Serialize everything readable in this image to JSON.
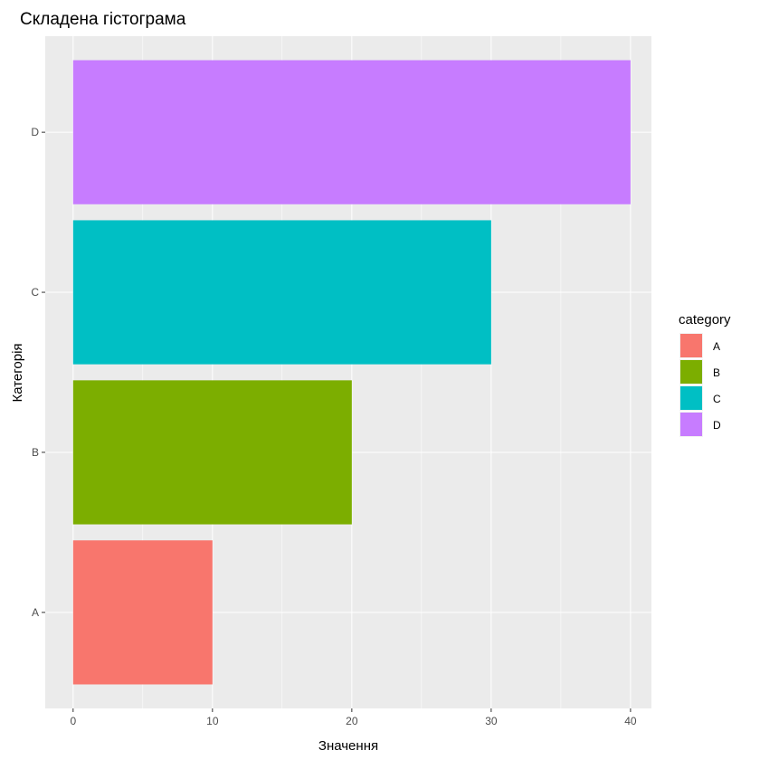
{
  "chart_data": {
    "type": "bar",
    "orientation": "horizontal",
    "title": "Складена гістограма",
    "xlabel": "Значення",
    "ylabel": "Категорія",
    "categories": [
      "A",
      "B",
      "C",
      "D"
    ],
    "values": [
      10,
      20,
      30,
      40
    ],
    "colors": [
      "#F8766D",
      "#7CAE00",
      "#00BFC4",
      "#C77CFF"
    ],
    "xlim": [
      -2,
      41.5
    ],
    "xticks": [
      0,
      10,
      20,
      30,
      40
    ],
    "grid": true,
    "legend": {
      "title": "category",
      "position": "right",
      "entries": [
        "A",
        "B",
        "C",
        "D"
      ]
    }
  }
}
